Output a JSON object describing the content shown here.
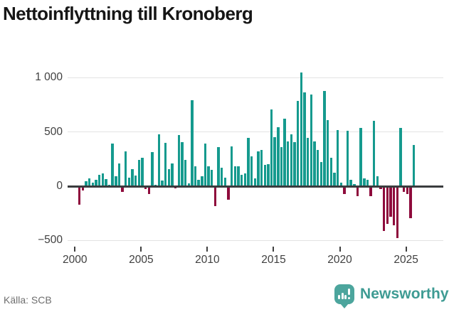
{
  "title": "Nettoinflyttning till Kronoberg",
  "source": {
    "label": "Källa: SCB"
  },
  "brand": {
    "name": "Newsworthy",
    "icon": "newsworthy-speech-bubble-bar-chart-icon"
  },
  "colors": {
    "positive_bar": "#159a8e",
    "negative_bar": "#8e0b3c",
    "gridline": "#e3e3e3",
    "zero_line": "#3a3c3e",
    "axis_text": "#3f3f3f",
    "source_text": "#6e6e6e",
    "title_text": "#161616",
    "brand_text": "#3e9b93",
    "brand_icon_bg": "#4ca59d"
  },
  "chart_data": {
    "type": "bar",
    "title": "Nettoinflyttning till Kronoberg",
    "frequency": "quarterly",
    "grid": true,
    "legend": false,
    "ylim": [
      -545,
      1090
    ],
    "y_ticks": [
      1000,
      500,
      0,
      -500
    ],
    "y_tick_labels": [
      "1 000",
      "500",
      "0",
      "−500"
    ],
    "x_tick_labels": [
      "2000",
      "2005",
      "2010",
      "2015",
      "2020",
      "2025"
    ],
    "series_by_year": [
      {
        "year": 2000,
        "quarters": [
          0,
          -170,
          -40,
          45
        ]
      },
      {
        "year": 2001,
        "quarters": [
          70,
          36,
          60,
          105
        ]
      },
      {
        "year": 2002,
        "quarters": [
          120,
          65,
          15,
          390
        ]
      },
      {
        "year": 2003,
        "quarters": [
          90,
          210,
          -50,
          320
        ]
      },
      {
        "year": 2004,
        "quarters": [
          80,
          160,
          100,
          240
        ]
      },
      {
        "year": 2005,
        "quarters": [
          260,
          -26,
          -70,
          315
        ]
      },
      {
        "year": 2006,
        "quarters": [
          13,
          480,
          52,
          400
        ]
      },
      {
        "year": 2007,
        "quarters": [
          160,
          210,
          -20,
          475
        ]
      },
      {
        "year": 2008,
        "quarters": [
          405,
          240,
          24,
          790
        ]
      },
      {
        "year": 2009,
        "quarters": [
          185,
          57,
          89,
          390
        ]
      },
      {
        "year": 2010,
        "quarters": [
          183,
          150,
          -183,
          358
        ]
      },
      {
        "year": 2011,
        "quarters": [
          172,
          79,
          -124,
          367
        ]
      },
      {
        "year": 2012,
        "quarters": [
          183,
          183,
          105,
          118
        ]
      },
      {
        "year": 2013,
        "quarters": [
          443,
          275,
          75,
          319
        ]
      },
      {
        "year": 2014,
        "quarters": [
          336,
          198,
          205,
          707
        ]
      },
      {
        "year": 2015,
        "quarters": [
          449,
          541,
          358,
          624
        ]
      },
      {
        "year": 2016,
        "quarters": [
          410,
          478,
          406,
          788
        ]
      },
      {
        "year": 2017,
        "quarters": [
          1050,
          868,
          445,
          846
        ]
      },
      {
        "year": 2018,
        "quarters": [
          415,
          334,
          225,
          877
        ]
      },
      {
        "year": 2019,
        "quarters": [
          610,
          265,
          127,
          520
        ]
      },
      {
        "year": 2020,
        "quarters": [
          31,
          -70,
          510,
          57
        ]
      },
      {
        "year": 2021,
        "quarters": [
          17,
          -92,
          535,
          72
        ]
      },
      {
        "year": 2022,
        "quarters": [
          57,
          -92,
          602,
          92
        ]
      },
      {
        "year": 2023,
        "quarters": [
          -26,
          -410,
          -345,
          -285
        ]
      },
      {
        "year": 2024,
        "quarters": [
          -360,
          -480,
          540,
          -55
        ]
      },
      {
        "year": 2025,
        "quarters": [
          -70,
          -292,
          378
        ]
      }
    ]
  }
}
